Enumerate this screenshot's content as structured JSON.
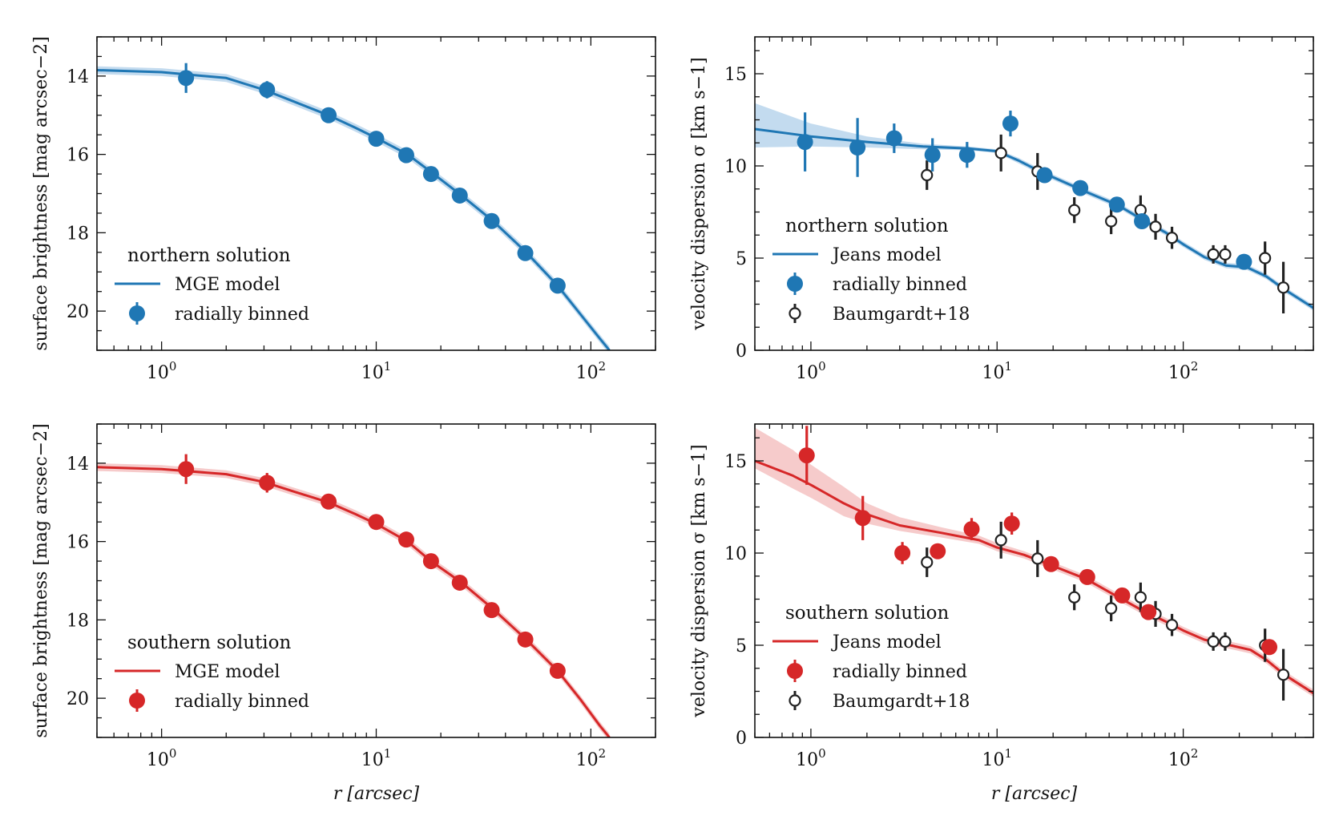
{
  "colors": {
    "north": "#1f77b4",
    "north_band": "#b9d5ec",
    "south": "#d62728",
    "south_band": "#f4c2c2",
    "baumgardt_edge": "#222222",
    "axis": "#111111"
  },
  "chart_data": [
    {
      "id": "sb_north",
      "type": "scatter",
      "xscale": "log",
      "xlim": [
        0.5,
        200
      ],
      "ylim": [
        21,
        13
      ],
      "y_inverted": true,
      "xlabel": "",
      "ylabel": "surface brightness [mag arcsec−2]",
      "xticks": [
        {
          "v": 1,
          "m": "10",
          "e": "0"
        },
        {
          "v": 10,
          "m": "10",
          "e": "1"
        },
        {
          "v": 100,
          "m": "10",
          "e": "2"
        }
      ],
      "yticks": [
        14,
        16,
        18,
        20
      ],
      "legend": {
        "title": "northern solution",
        "position": "lower-left",
        "line_label": "MGE model",
        "points_label": "radially binned"
      },
      "color_key": "north",
      "model": {
        "name": "MGE model",
        "x": [
          0.5,
          1,
          2,
          3,
          4,
          6,
          8,
          10,
          14,
          18,
          25,
          35,
          50,
          70,
          90,
          110,
          122
        ],
        "y": [
          13.85,
          13.9,
          14.05,
          14.35,
          14.62,
          15.0,
          15.32,
          15.58,
          16.0,
          16.45,
          17.05,
          17.7,
          18.5,
          19.35,
          20.1,
          20.7,
          21.0
        ],
        "band": 0.1
      },
      "points": {
        "name": "radially binned",
        "x": [
          1.3,
          3.1,
          6.0,
          10.0,
          13.8,
          18.0,
          24.5,
          34.5,
          49.5,
          70.0
        ],
        "y": [
          14.05,
          14.35,
          15.0,
          15.6,
          16.02,
          16.5,
          17.05,
          17.7,
          18.52,
          19.35
        ],
        "err": [
          0.38,
          0.22,
          0.1,
          0.1,
          0.1,
          0.1,
          0.1,
          0.1,
          0.1,
          0.12
        ]
      }
    },
    {
      "id": "vd_north",
      "type": "scatter",
      "xscale": "log",
      "xlim": [
        0.5,
        500
      ],
      "ylim": [
        0,
        17
      ],
      "xlabel": "",
      "ylabel": "velocity dispersion σ [km s−1]",
      "xticks": [
        {
          "v": 1,
          "m": "10",
          "e": "0"
        },
        {
          "v": 10,
          "m": "10",
          "e": "1"
        },
        {
          "v": 100,
          "m": "10",
          "e": "2"
        }
      ],
      "yticks": [
        0,
        5,
        10,
        15
      ],
      "legend": {
        "title": "northern solution",
        "position": "lower-left",
        "line_label": "Jeans model",
        "points_label": "radially binned",
        "baum_label": "Baumgardt+18"
      },
      "color_key": "north",
      "model": {
        "name": "Jeans model",
        "x": [
          0.5,
          1,
          2,
          4,
          7,
          10,
          13,
          17,
          22,
          30,
          45,
          60,
          80,
          100,
          130,
          170,
          220,
          280,
          350,
          500
        ],
        "y": [
          12.0,
          11.6,
          11.3,
          11.05,
          10.95,
          10.8,
          10.3,
          9.7,
          9.2,
          8.6,
          7.85,
          7.1,
          6.4,
          5.75,
          5.05,
          4.6,
          4.5,
          4.0,
          3.3,
          2.3
        ],
        "band_upper": [
          13.4,
          12.3,
          11.6,
          11.2,
          11.05,
          10.9,
          10.45,
          9.85,
          9.35,
          8.75,
          8.0,
          7.25,
          6.55,
          5.9,
          5.2,
          4.75,
          4.65,
          4.15,
          3.45,
          2.45
        ],
        "band_lower": [
          11.0,
          11.05,
          11.0,
          10.9,
          10.85,
          10.7,
          10.15,
          9.55,
          9.05,
          8.45,
          7.7,
          6.95,
          6.25,
          5.6,
          4.9,
          4.45,
          4.35,
          3.85,
          3.15,
          2.15
        ]
      },
      "points": {
        "name": "radially binned",
        "x": [
          0.93,
          1.78,
          2.8,
          4.5,
          6.9,
          11.8,
          18.0,
          28.0,
          44.0,
          60.0,
          212.0
        ],
        "y": [
          11.3,
          11.0,
          11.5,
          10.6,
          10.6,
          12.3,
          9.5,
          8.8,
          7.9,
          7.0,
          4.8
        ],
        "err": [
          1.6,
          1.6,
          0.8,
          0.9,
          0.7,
          0.7,
          0.4,
          0.4,
          0.4,
          0.4,
          0.4
        ]
      },
      "baumgardt": {
        "name": "Baumgardt+18",
        "x": [
          4.2,
          10.5,
          16.5,
          26.0,
          41.0,
          59.0,
          71.0,
          87.0,
          145.0,
          168.0,
          275.0,
          345.0
        ],
        "y": [
          9.5,
          10.7,
          9.7,
          7.6,
          7.0,
          7.6,
          6.7,
          6.1,
          5.2,
          5.2,
          5.0,
          3.4
        ],
        "err": [
          0.8,
          1.0,
          1.0,
          0.7,
          0.7,
          0.8,
          0.7,
          0.6,
          0.5,
          0.5,
          0.9,
          1.4
        ]
      }
    },
    {
      "id": "sb_south",
      "type": "scatter",
      "xscale": "log",
      "xlim": [
        0.5,
        200
      ],
      "ylim": [
        21,
        13
      ],
      "y_inverted": true,
      "xlabel": "r [arcsec]",
      "ylabel": "surface brightness [mag arcsec−2]",
      "xticks": [
        {
          "v": 1,
          "m": "10",
          "e": "0"
        },
        {
          "v": 10,
          "m": "10",
          "e": "1"
        },
        {
          "v": 100,
          "m": "10",
          "e": "2"
        }
      ],
      "yticks": [
        14,
        16,
        18,
        20
      ],
      "legend": {
        "title": "southern solution",
        "position": "lower-left",
        "line_label": "MGE model",
        "points_label": "radially binned"
      },
      "color_key": "south",
      "model": {
        "name": "MGE model",
        "x": [
          0.5,
          1,
          2,
          3,
          4,
          6,
          8,
          10,
          14,
          18,
          25,
          35,
          50,
          70,
          90,
          110,
          122
        ],
        "y": [
          14.1,
          14.15,
          14.28,
          14.48,
          14.7,
          15.0,
          15.3,
          15.55,
          16.0,
          16.5,
          17.05,
          17.72,
          18.5,
          19.3,
          20.05,
          20.7,
          21.0
        ],
        "band": 0.1
      },
      "points": {
        "name": "radially binned",
        "x": [
          1.3,
          3.1,
          6.0,
          10.0,
          13.8,
          18.0,
          24.5,
          34.5,
          49.5,
          70.0
        ],
        "y": [
          14.15,
          14.5,
          14.98,
          15.5,
          15.95,
          16.5,
          17.05,
          17.75,
          18.5,
          19.3
        ],
        "err": [
          0.38,
          0.25,
          0.12,
          0.12,
          0.12,
          0.12,
          0.12,
          0.12,
          0.12,
          0.12
        ]
      }
    },
    {
      "id": "vd_south",
      "type": "scatter",
      "xscale": "log",
      "xlim": [
        0.5,
        500
      ],
      "ylim": [
        0,
        17
      ],
      "xlabel": "r [arcsec]",
      "ylabel": "velocity dispersion σ [km s−1]",
      "xticks": [
        {
          "v": 1,
          "m": "10",
          "e": "0"
        },
        {
          "v": 10,
          "m": "10",
          "e": "1"
        },
        {
          "v": 100,
          "m": "10",
          "e": "2"
        }
      ],
      "yticks": [
        0,
        5,
        10,
        15
      ],
      "legend": {
        "title": "southern solution",
        "position": "lower-left",
        "line_label": "Jeans model",
        "points_label": "radially binned",
        "baum_label": "Baumgardt+18"
      },
      "color_key": "south",
      "model": {
        "name": "Jeans model",
        "x": [
          0.5,
          0.8,
          1,
          1.5,
          2,
          3,
          5,
          8,
          10,
          14,
          20,
          30,
          45,
          60,
          80,
          100,
          130,
          170,
          230,
          280,
          350,
          500
        ],
        "y": [
          15.0,
          14.2,
          13.7,
          12.7,
          12.1,
          11.5,
          11.1,
          10.7,
          10.3,
          9.9,
          9.3,
          8.6,
          7.6,
          6.9,
          6.3,
          5.8,
          5.3,
          5.05,
          4.75,
          4.2,
          3.4,
          2.4
        ],
        "band_upper": [
          16.8,
          15.6,
          14.8,
          13.6,
          12.7,
          11.95,
          11.4,
          10.95,
          10.55,
          10.1,
          9.5,
          8.8,
          7.8,
          7.1,
          6.5,
          6.0,
          5.5,
          5.25,
          4.95,
          4.4,
          3.6,
          2.6
        ],
        "band_lower": [
          14.6,
          13.5,
          13.0,
          12.0,
          11.6,
          11.2,
          10.85,
          10.5,
          10.1,
          9.7,
          9.1,
          8.4,
          7.4,
          6.7,
          6.1,
          5.6,
          5.1,
          4.85,
          4.55,
          4.0,
          3.2,
          2.2
        ]
      },
      "points": {
        "name": "radially binned",
        "x": [
          0.95,
          1.9,
          3.1,
          4.8,
          7.3,
          12.0,
          19.5,
          30.5,
          47.0,
          65.0,
          290.0
        ],
        "y": [
          15.3,
          11.9,
          10.0,
          10.1,
          11.3,
          11.6,
          9.4,
          8.7,
          7.7,
          6.8,
          4.9
        ],
        "err": [
          1.6,
          1.2,
          0.6,
          0.4,
          0.6,
          0.6,
          0.3,
          0.3,
          0.3,
          0.4,
          0.4
        ]
      },
      "baumgardt": {
        "name": "Baumgardt+18",
        "x": [
          4.2,
          10.5,
          16.5,
          26.0,
          41.0,
          59.0,
          71.0,
          87.0,
          145.0,
          168.0,
          275.0,
          345.0
        ],
        "y": [
          9.5,
          10.7,
          9.7,
          7.6,
          7.0,
          7.6,
          6.7,
          6.1,
          5.2,
          5.2,
          5.0,
          3.4
        ],
        "err": [
          0.8,
          1.0,
          1.0,
          0.7,
          0.7,
          0.8,
          0.7,
          0.6,
          0.5,
          0.5,
          0.9,
          1.4
        ]
      }
    }
  ]
}
